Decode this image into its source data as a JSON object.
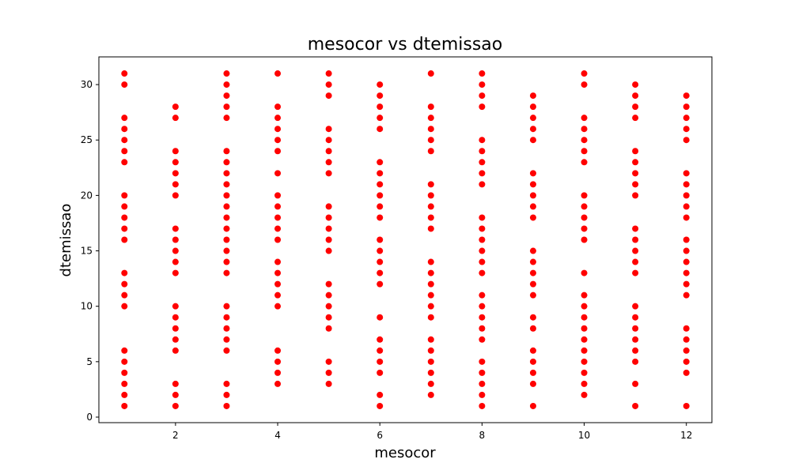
{
  "chart_data": {
    "type": "scatter",
    "title": "mesocor vs dtemissao",
    "xlabel": "mesocor",
    "ylabel": "dtemissao",
    "xlim": [
      0.5,
      12.5
    ],
    "ylim": [
      -0.5,
      32.5
    ],
    "xticks": [
      2,
      4,
      6,
      8,
      10,
      12
    ],
    "yticks": [
      0,
      5,
      10,
      15,
      20,
      25,
      30
    ],
    "grid": false,
    "marker_color": "#ff0000",
    "points": [
      {
        "x": 1,
        "ys": [
          1,
          2,
          3,
          4,
          5,
          6,
          10,
          11,
          12,
          13,
          16,
          17,
          18,
          19,
          20,
          23,
          24,
          25,
          26,
          27,
          30,
          31
        ]
      },
      {
        "x": 2,
        "ys": [
          1,
          2,
          3,
          6,
          7,
          8,
          9,
          10,
          13,
          14,
          15,
          16,
          17,
          20,
          21,
          22,
          23,
          24,
          27,
          28
        ]
      },
      {
        "x": 3,
        "ys": [
          1,
          2,
          3,
          6,
          7,
          8,
          9,
          10,
          13,
          14,
          15,
          16,
          17,
          18,
          19,
          20,
          21,
          22,
          23,
          24,
          27,
          28,
          29,
          30,
          31
        ]
      },
      {
        "x": 4,
        "ys": [
          3,
          4,
          5,
          6,
          10,
          11,
          12,
          13,
          14,
          16,
          17,
          18,
          19,
          20,
          22,
          24,
          25,
          26,
          27,
          28,
          31
        ]
      },
      {
        "x": 5,
        "ys": [
          3,
          4,
          5,
          8,
          9,
          10,
          11,
          12,
          15,
          16,
          17,
          18,
          19,
          22,
          23,
          24,
          25,
          26,
          29,
          30,
          31
        ]
      },
      {
        "x": 6,
        "ys": [
          1,
          2,
          4,
          5,
          6,
          7,
          9,
          12,
          13,
          14,
          15,
          16,
          18,
          19,
          20,
          21,
          22,
          23,
          26,
          27,
          28,
          29,
          30
        ]
      },
      {
        "x": 7,
        "ys": [
          2,
          3,
          4,
          5,
          6,
          7,
          9,
          10,
          11,
          12,
          13,
          14,
          17,
          18,
          19,
          20,
          21,
          24,
          25,
          26,
          27,
          28,
          31
        ]
      },
      {
        "x": 8,
        "ys": [
          1,
          2,
          3,
          4,
          5,
          7,
          8,
          9,
          10,
          11,
          13,
          14,
          15,
          16,
          17,
          18,
          21,
          22,
          23,
          24,
          25,
          28,
          29,
          30,
          31
        ]
      },
      {
        "x": 9,
        "ys": [
          1,
          3,
          4,
          5,
          6,
          8,
          9,
          11,
          12,
          13,
          14,
          15,
          18,
          19,
          20,
          21,
          22,
          25,
          26,
          27,
          28,
          29
        ]
      },
      {
        "x": 10,
        "ys": [
          2,
          3,
          4,
          5,
          6,
          7,
          8,
          9,
          10,
          11,
          13,
          16,
          17,
          18,
          19,
          20,
          23,
          24,
          25,
          26,
          27,
          30,
          31
        ]
      },
      {
        "x": 11,
        "ys": [
          1,
          3,
          5,
          6,
          7,
          8,
          9,
          10,
          13,
          14,
          15,
          16,
          17,
          20,
          21,
          22,
          23,
          24,
          27,
          28,
          29,
          30
        ]
      },
      {
        "x": 12,
        "ys": [
          1,
          4,
          5,
          6,
          7,
          8,
          11,
          12,
          13,
          14,
          15,
          16,
          18,
          19,
          20,
          21,
          22,
          25,
          26,
          27,
          28,
          29
        ]
      }
    ]
  }
}
